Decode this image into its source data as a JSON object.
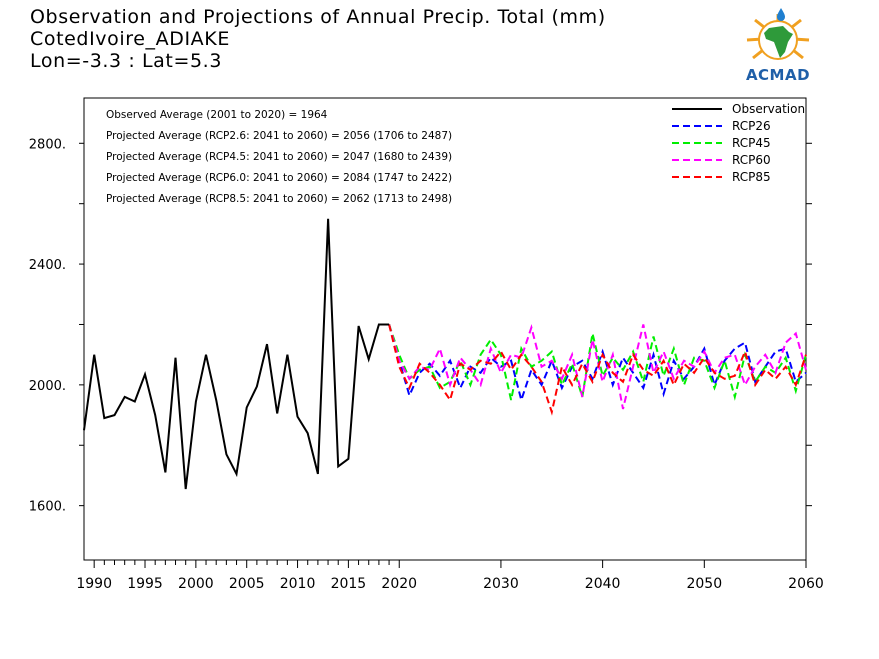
{
  "header": {
    "title_line1": "Observation and Projections of Annual Precip. Total (mm)",
    "title_line2": "CotedIvoire_ADIAKE",
    "title_line3": "Lon=-3.3 : Lat=5.3"
  },
  "logo": {
    "text": "ACMAD",
    "icon": "africa-globe-logo"
  },
  "chart_data": {
    "type": "line",
    "title": "Observation and Projections of Annual Precip. Total (mm)",
    "xlim": [
      1989,
      2060
    ],
    "ylim": [
      1420,
      2950
    ],
    "x_ticks": [
      1990,
      1995,
      2000,
      2005,
      2010,
      2015,
      2020,
      2030,
      2040,
      2050,
      2060
    ],
    "y_ticks": [
      {
        "value": 1600,
        "label": "1600."
      },
      {
        "value": 2000,
        "label": "2000."
      },
      {
        "value": 2400,
        "label": "2400."
      },
      {
        "value": 2800,
        "label": "2800."
      }
    ],
    "annotations": [
      "Observed Average (2001 to 2020) = 1964",
      "Projected Average (RCP2.6: 2041 to 2060) = 2056 (1706 to 2487)",
      "Projected Average (RCP4.5: 2041 to 2060) = 2047 (1680 to 2439)",
      "Projected Average (RCP6.0: 2041 to 2060) = 2084 (1747 to 2422)",
      "Projected Average (RCP8.5: 2041 to 2060) = 2062 (1713 to 2498)"
    ],
    "legend_position": "top-right",
    "series": [
      {
        "name": "Observation",
        "color": "#000000",
        "dash": false,
        "x": [
          1989,
          1990,
          1991,
          1992,
          1993,
          1994,
          1995,
          1996,
          1997,
          1998,
          1999,
          2000,
          2001,
          2002,
          2003,
          2004,
          2005,
          2006,
          2007,
          2008,
          2009,
          2010,
          2011,
          2012,
          2013,
          2014,
          2015,
          2016,
          2017,
          2018,
          2019
        ],
        "y": [
          1850,
          2100,
          1890,
          1900,
          1960,
          1945,
          2035,
          1900,
          1710,
          2090,
          1655,
          1945,
          2100,
          1950,
          1770,
          1705,
          1925,
          1995,
          2135,
          1905,
          2100,
          1895,
          1840,
          1705,
          2550,
          1730,
          1755,
          2195,
          2085,
          2200,
          2200
        ]
      },
      {
        "name": "RCP26",
        "color": "#0000ff",
        "dash": true,
        "x": [
          2019,
          2020,
          2021,
          2022,
          2023,
          2024,
          2025,
          2026,
          2027,
          2028,
          2029,
          2030,
          2031,
          2032,
          2033,
          2034,
          2035,
          2036,
          2037,
          2038,
          2039,
          2040,
          2041,
          2042,
          2043,
          2044,
          2045,
          2046,
          2047,
          2048,
          2049,
          2050,
          2051,
          2052,
          2053,
          2054,
          2055,
          2056,
          2057,
          2058,
          2059,
          2060
        ],
        "y": [
          2200,
          2080,
          1965,
          2040,
          2070,
          2030,
          2080,
          1990,
          2060,
          2040,
          2090,
          2060,
          2080,
          1950,
          2050,
          2000,
          2080,
          1990,
          2060,
          2080,
          2020,
          2110,
          2000,
          2090,
          2040,
          1990,
          2100,
          1970,
          2080,
          2020,
          2060,
          2120,
          2000,
          2080,
          2120,
          2140,
          2010,
          2060,
          2110,
          2120,
          2010,
          2040
        ]
      },
      {
        "name": "RCP45",
        "color": "#00ee00",
        "dash": true,
        "x": [
          2019,
          2020,
          2021,
          2022,
          2023,
          2024,
          2025,
          2026,
          2027,
          2028,
          2029,
          2030,
          2031,
          2032,
          2033,
          2034,
          2035,
          2036,
          2037,
          2038,
          2039,
          2040,
          2041,
          2042,
          2043,
          2044,
          2045,
          2046,
          2047,
          2048,
          2049,
          2050,
          2051,
          2052,
          2053,
          2054,
          2055,
          2056,
          2057,
          2058,
          2059,
          2060
        ],
        "y": [
          2200,
          2100,
          2020,
          2050,
          2060,
          1990,
          2010,
          2080,
          2000,
          2100,
          2150,
          2100,
          1950,
          2120,
          2060,
          2080,
          2110,
          2000,
          2070,
          1960,
          2170,
          2030,
          2090,
          2050,
          2110,
          2010,
          2160,
          2030,
          2120,
          2000,
          2090,
          2080,
          1990,
          2080,
          1960,
          2100,
          2010,
          2060,
          2040,
          2090,
          1980,
          2100
        ]
      },
      {
        "name": "RCP60",
        "color": "#ff00ff",
        "dash": true,
        "x": [
          2019,
          2020,
          2021,
          2022,
          2023,
          2024,
          2025,
          2026,
          2027,
          2028,
          2029,
          2030,
          2031,
          2032,
          2033,
          2034,
          2035,
          2036,
          2037,
          2038,
          2039,
          2040,
          2041,
          2042,
          2043,
          2044,
          2045,
          2046,
          2047,
          2048,
          2049,
          2050,
          2051,
          2052,
          2053,
          2054,
          2055,
          2056,
          2057,
          2058,
          2059,
          2060
        ],
        "y": [
          2200,
          2080,
          2020,
          2060,
          2050,
          2120,
          2000,
          2090,
          2050,
          2000,
          2120,
          2040,
          2100,
          2090,
          2190,
          2060,
          2080,
          2020,
          2100,
          1960,
          2150,
          2010,
          2100,
          1920,
          2060,
          2200,
          2040,
          2110,
          2020,
          2080,
          2060,
          2110,
          2040,
          2090,
          2100,
          2000,
          2060,
          2100,
          2040,
          2140,
          2170,
          2050
        ]
      },
      {
        "name": "RCP85",
        "color": "#ff0000",
        "dash": true,
        "x": [
          2019,
          2020,
          2021,
          2022,
          2023,
          2024,
          2025,
          2026,
          2027,
          2028,
          2029,
          2030,
          2031,
          2032,
          2033,
          2034,
          2035,
          2036,
          2037,
          2038,
          2039,
          2040,
          2041,
          2042,
          2043,
          2044,
          2045,
          2046,
          2047,
          2048,
          2049,
          2050,
          2051,
          2052,
          2053,
          2054,
          2055,
          2056,
          2057,
          2058,
          2059,
          2060
        ],
        "y": [
          2200,
          2060,
          1990,
          2070,
          2040,
          2000,
          1950,
          2070,
          2050,
          2080,
          2070,
          2110,
          2050,
          2100,
          2060,
          2010,
          1910,
          2060,
          2000,
          2070,
          2010,
          2100,
          2040,
          2010,
          2100,
          2050,
          2030,
          2080,
          2000,
          2070,
          2040,
          2090,
          2040,
          2020,
          2030,
          2110,
          2000,
          2050,
          2020,
          2060,
          2000,
          2100
        ]
      }
    ]
  }
}
